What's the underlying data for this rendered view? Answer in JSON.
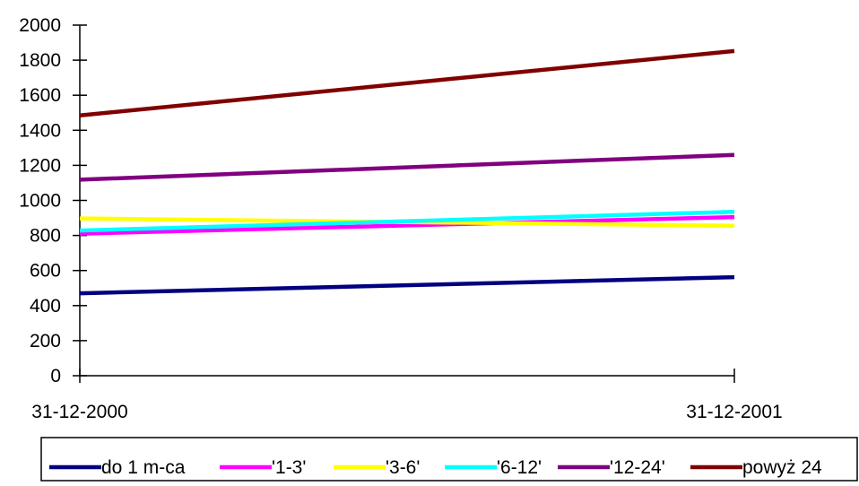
{
  "chart_data": {
    "type": "line",
    "title": "",
    "xlabel": "",
    "ylabel": "",
    "categories": [
      "31-12-2000",
      "31-12-2001"
    ],
    "ylim": [
      0,
      2000
    ],
    "yticks": [
      0,
      200,
      400,
      600,
      800,
      1000,
      1200,
      1400,
      1600,
      1800,
      2000
    ],
    "yticks_labels": [
      "0",
      "200",
      "400",
      "600",
      "800",
      "1000",
      "1200",
      "1400",
      "1600",
      "1800",
      "2000"
    ],
    "grid": false,
    "legend_position": "bottom",
    "series": [
      {
        "name": "do 1 m-ca",
        "color": "#000080",
        "values": [
          470,
          562
        ]
      },
      {
        "name": "'1-3'",
        "color": "#ff00ff",
        "values": [
          810,
          905
        ]
      },
      {
        "name": "'3-6'",
        "color": "#ffff00",
        "values": [
          897,
          855
        ]
      },
      {
        "name": "'6-12'",
        "color": "#00ffff",
        "values": [
          828,
          935
        ]
      },
      {
        "name": "'12-24'",
        "color": "#800080",
        "values": [
          1118,
          1260
        ]
      },
      {
        "name": "powyż 24",
        "color": "#800000",
        "values": [
          1485,
          1852
        ]
      }
    ]
  }
}
